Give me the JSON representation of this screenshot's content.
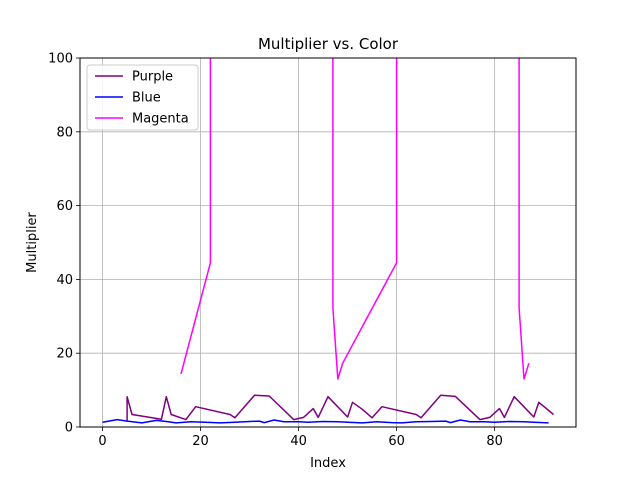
{
  "chart_data": {
    "type": "line",
    "title": "Multiplier vs. Color",
    "xlabel": "Index",
    "ylabel": "Multiplier",
    "xlim": [
      -4.6,
      96.6
    ],
    "ylim": [
      0,
      100
    ],
    "xticks": [
      0,
      20,
      40,
      60,
      80
    ],
    "yticks": [
      0,
      20,
      40,
      60,
      80,
      100
    ],
    "grid": true,
    "legend_position": "upper-left",
    "series": [
      {
        "name": "Purple",
        "color": "#800080",
        "points": [
          [
            5,
            1.5
          ],
          [
            5,
            8.2
          ],
          [
            6,
            3.4
          ],
          [
            12,
            2.1
          ],
          [
            13,
            8.2
          ],
          [
            14,
            3.4
          ],
          [
            17,
            2.0
          ],
          [
            19,
            5.5
          ],
          [
            26,
            3.4
          ],
          [
            27,
            2.5
          ],
          [
            31,
            8.6
          ],
          [
            34,
            8.4
          ],
          [
            39,
            2.0
          ],
          [
            41,
            2.6
          ],
          [
            43,
            5.0
          ],
          [
            44,
            2.6
          ],
          [
            46,
            8.2
          ],
          [
            50,
            2.7
          ],
          [
            51,
            6.7
          ],
          [
            53,
            4.8
          ],
          [
            55,
            2.5
          ],
          [
            57,
            5.5
          ],
          [
            64,
            3.4
          ],
          [
            65,
            2.5
          ],
          [
            69,
            8.6
          ],
          [
            72,
            8.3
          ],
          [
            77,
            2.0
          ],
          [
            79,
            2.6
          ],
          [
            81,
            5.0
          ],
          [
            82,
            2.6
          ],
          [
            84,
            8.2
          ],
          [
            88,
            2.7
          ],
          [
            89,
            6.7
          ],
          [
            92,
            3.4
          ]
        ]
      },
      {
        "name": "Blue",
        "color": "#0000ff",
        "points": [
          [
            0,
            1.3
          ],
          [
            3,
            2.0
          ],
          [
            5,
            1.6
          ],
          [
            8,
            1.1
          ],
          [
            11,
            1.8
          ],
          [
            13,
            1.5
          ],
          [
            15,
            1.1
          ],
          [
            18,
            1.4
          ],
          [
            21,
            1.3
          ],
          [
            24,
            1.1
          ],
          [
            27,
            1.3
          ],
          [
            30,
            1.5
          ],
          [
            32,
            1.6
          ],
          [
            33,
            1.2
          ],
          [
            35,
            1.9
          ],
          [
            37,
            1.4
          ],
          [
            40,
            1.4
          ],
          [
            42,
            1.3
          ],
          [
            45,
            1.5
          ],
          [
            48,
            1.4
          ],
          [
            50,
            1.3
          ],
          [
            53,
            1.1
          ],
          [
            56,
            1.4
          ],
          [
            59,
            1.2
          ],
          [
            61,
            1.1
          ],
          [
            64,
            1.4
          ],
          [
            67,
            1.5
          ],
          [
            70,
            1.6
          ],
          [
            71,
            1.2
          ],
          [
            73,
            1.9
          ],
          [
            75,
            1.4
          ],
          [
            78,
            1.4
          ],
          [
            80,
            1.3
          ],
          [
            83,
            1.5
          ],
          [
            86,
            1.4
          ],
          [
            88,
            1.3
          ],
          [
            91,
            1.1
          ]
        ]
      },
      {
        "name": "Magenta",
        "color": "#ff00ff",
        "points": [
          [
            16,
            14.4
          ],
          [
            22,
            44.5
          ],
          [
            22,
            100
          ],
          null,
          [
            47,
            100
          ],
          [
            47,
            32.3
          ],
          [
            48,
            13.0
          ],
          [
            49,
            17.3
          ],
          [
            60,
            44.5
          ],
          [
            60,
            100
          ],
          null,
          [
            85,
            100
          ],
          [
            85,
            32.3
          ],
          [
            86,
            13.0
          ],
          [
            87,
            17.3
          ]
        ]
      }
    ]
  }
}
